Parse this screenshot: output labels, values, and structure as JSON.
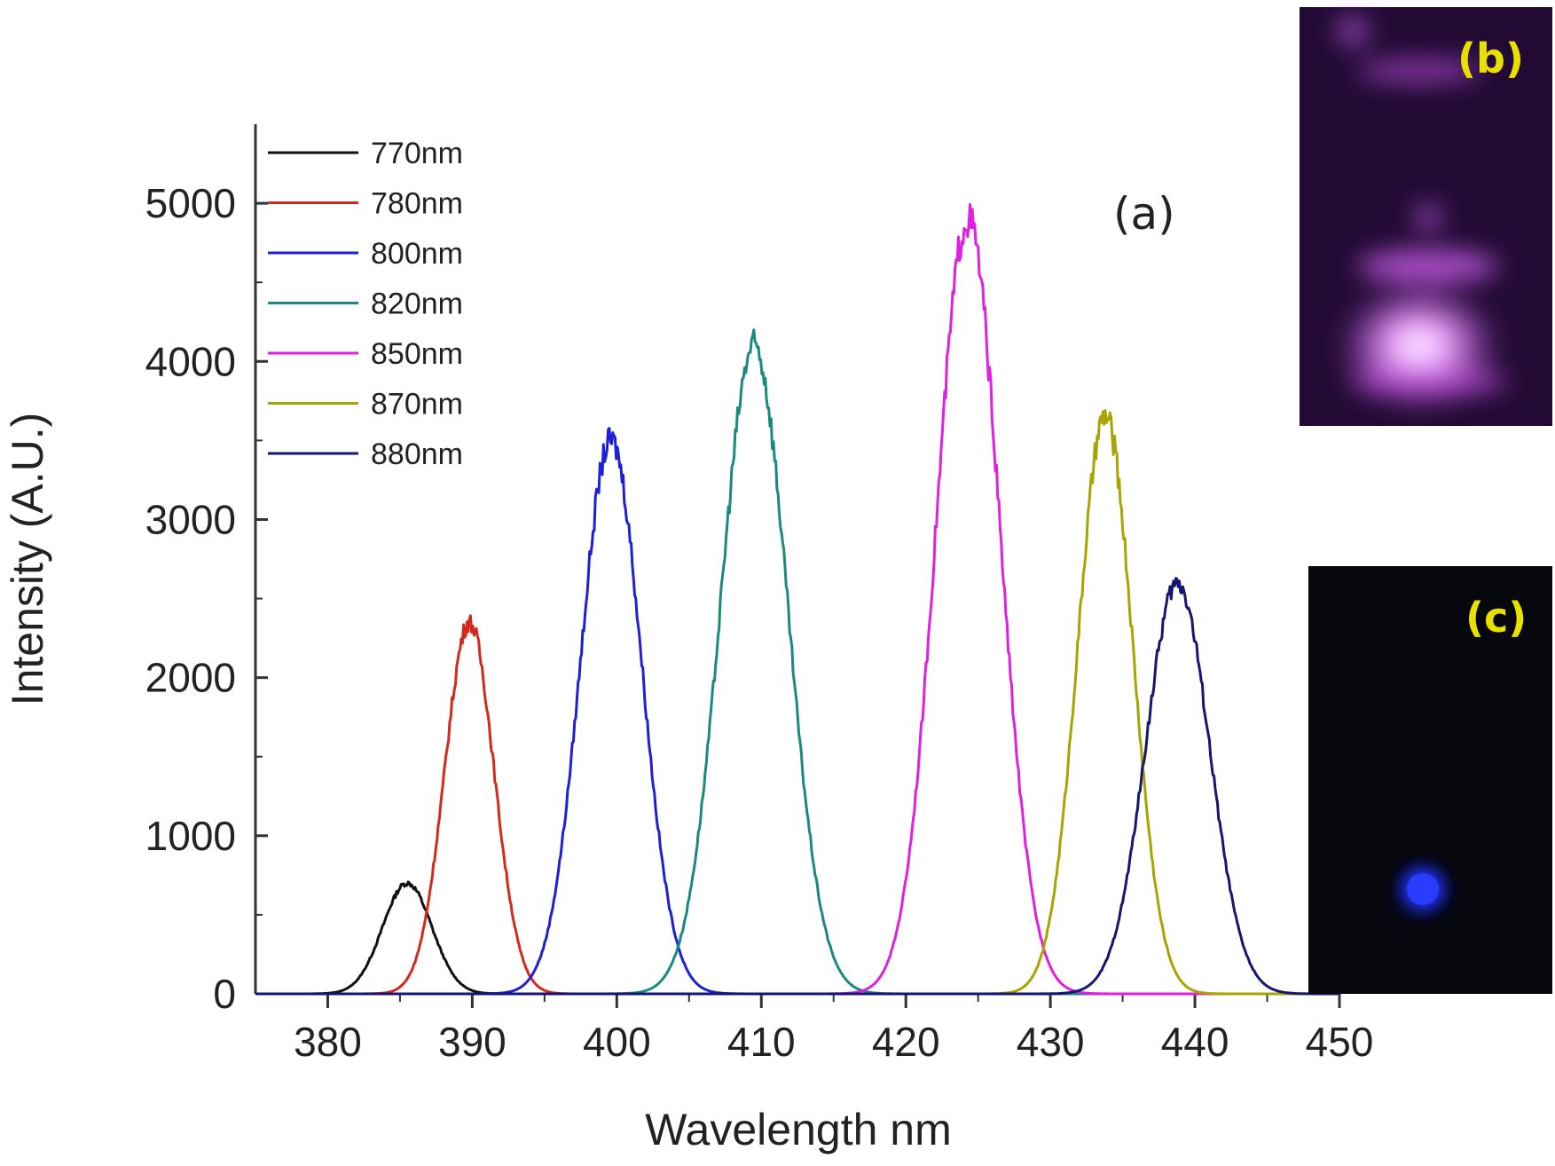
{
  "chart_data": {
    "type": "line",
    "title": "",
    "xlabel": "Wavelength nm",
    "ylabel": "Intensity (A.U.)",
    "xlim": [
      375,
      450
    ],
    "ylim": [
      0,
      5500
    ],
    "xticks": [
      380,
      390,
      400,
      410,
      420,
      430,
      440,
      450
    ],
    "yticks": [
      0,
      1000,
      2000,
      3000,
      4000,
      5000
    ],
    "grid": false,
    "legend_position": "top-left",
    "panel_label": "(a)",
    "series": [
      {
        "name": "770nm",
        "color": "#111111",
        "peak_x": 385.5,
        "peak_y": 700,
        "sigma": 1.7
      },
      {
        "name": "780nm",
        "color": "#d42a1e",
        "peak_x": 389.8,
        "peak_y": 2350,
        "sigma": 1.7
      },
      {
        "name": "800nm",
        "color": "#1f1fd8",
        "peak_x": 399.6,
        "peak_y": 3500,
        "sigma": 2.1
      },
      {
        "name": "820nm",
        "color": "#1a8a80",
        "peak_x": 409.5,
        "peak_y": 4100,
        "sigma": 2.3
      },
      {
        "name": "850nm",
        "color": "#e020e0",
        "peak_x": 424.3,
        "peak_y": 4900,
        "sigma": 2.2
      },
      {
        "name": "870nm",
        "color": "#a8a400",
        "peak_x": 433.8,
        "peak_y": 3650,
        "sigma": 1.9
      },
      {
        "name": "880nm",
        "color": "#161670",
        "peak_x": 438.8,
        "peak_y": 2600,
        "sigma": 2.2
      }
    ]
  },
  "insets": {
    "b": {
      "label": "(b)",
      "description_color": "#c040e0"
    },
    "c": {
      "label": "(c)",
      "description_color": "#2030ff"
    }
  }
}
